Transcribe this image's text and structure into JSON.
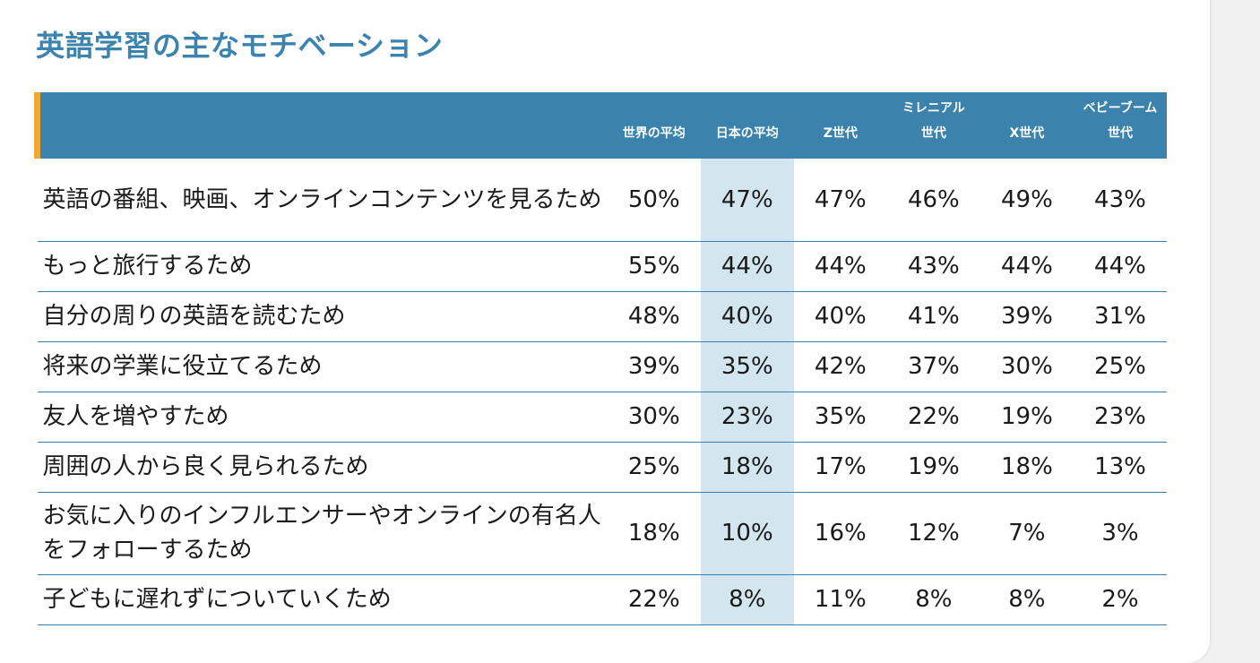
{
  "chart_data": {
    "type": "table",
    "title": "英語学習の主なモチベーション",
    "columns": [
      {
        "label_lines": [
          "世界の平均"
        ]
      },
      {
        "label_lines": [
          "日本の平均"
        ]
      },
      {
        "label_lines": [
          "Z世代"
        ]
      },
      {
        "label_lines": [
          "ミレニアル",
          "世代"
        ]
      },
      {
        "label_lines": [
          "X世代"
        ]
      },
      {
        "label_lines": [
          "ベビーブーム",
          "世代"
        ]
      }
    ],
    "highlight_column_index": 1,
    "rows": [
      {
        "label": "英語の番組、映画、オンラインコンテンツを見るため",
        "values": [
          "50%",
          "47%",
          "47%",
          "46%",
          "49%",
          "43%"
        ]
      },
      {
        "label": "もっと旅行するため",
        "values": [
          "55%",
          "44%",
          "44%",
          "43%",
          "44%",
          "44%"
        ]
      },
      {
        "label": "自分の周りの英語を読むため",
        "values": [
          "48%",
          "40%",
          "40%",
          "41%",
          "39%",
          "31%"
        ]
      },
      {
        "label": "将来の学業に役立てるため",
        "values": [
          "39%",
          "35%",
          "42%",
          "37%",
          "30%",
          "25%"
        ]
      },
      {
        "label": "友人を増やすため",
        "values": [
          "30%",
          "23%",
          "35%",
          "22%",
          "19%",
          "23%"
        ]
      },
      {
        "label": "周囲の人から良く見られるため",
        "values": [
          "25%",
          "18%",
          "17%",
          "19%",
          "18%",
          "13%"
        ]
      },
      {
        "label": "お気に入りのインフルエンサーやオンラインの有名人をフォローするため",
        "values": [
          "18%",
          "10%",
          "16%",
          "12%",
          "7%",
          "3%"
        ]
      },
      {
        "label": "子どもに遅れずについていくため",
        "values": [
          "22%",
          "8%",
          "11%",
          "8%",
          "8%",
          "2%"
        ]
      }
    ],
    "colors": {
      "title": "#3c84ae",
      "header_bg": "#3b83ad",
      "header_accent": "#f0a830",
      "highlight_bg": "#d3e6f0",
      "row_divider": "#3b83ad"
    }
  }
}
